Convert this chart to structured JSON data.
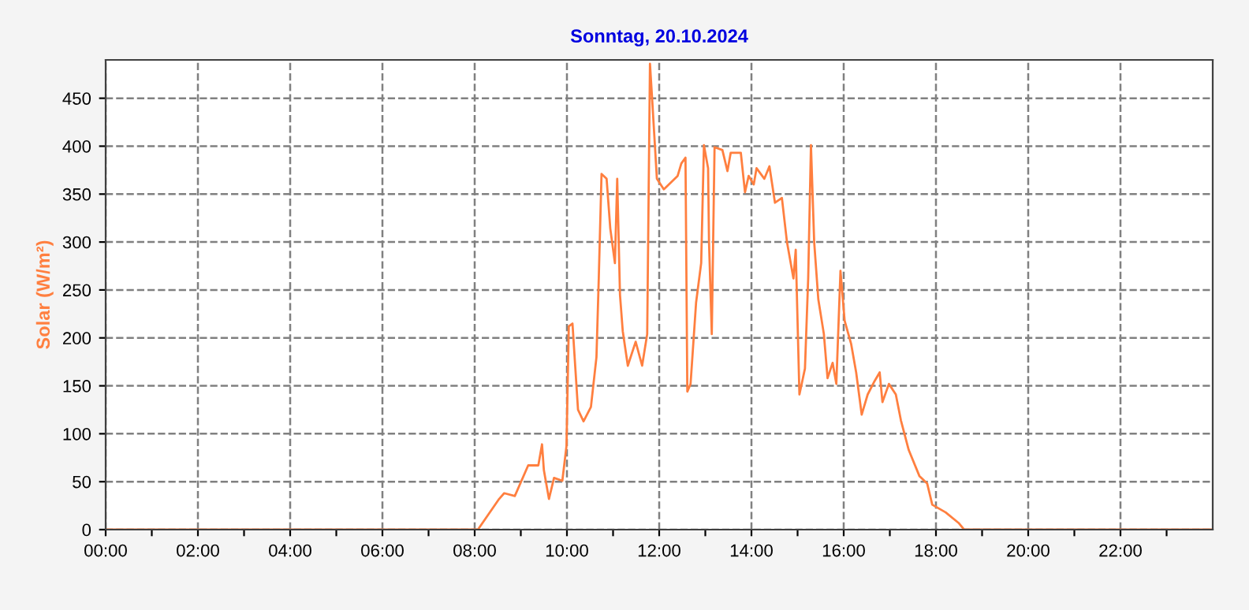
{
  "chart_data": {
    "type": "line",
    "title": "Sonntag, 20.10.2024",
    "ylabel": "Solar (W/m²)",
    "x": [
      0,
      8.07,
      8.53,
      8.64,
      8.87,
      9.16,
      9.38,
      9.46,
      9.5,
      9.61,
      9.72,
      9.9,
      9.99,
      10.04,
      10.12,
      10.24,
      10.36,
      10.52,
      10.64,
      10.69,
      10.75,
      10.86,
      10.94,
      11.04,
      11.09,
      11.15,
      11.21,
      11.32,
      11.49,
      11.63,
      11.74,
      11.8,
      11.85,
      11.95,
      12.1,
      12.4,
      12.48,
      12.57,
      12.61,
      12.68,
      12.8,
      12.91,
      12.97,
      13.06,
      13.08,
      13.14,
      13.2,
      13.37,
      13.48,
      13.55,
      13.77,
      13.86,
      13.94,
      14.05,
      14.11,
      14.28,
      14.39,
      14.51,
      14.66,
      14.77,
      14.91,
      14.96,
      15.04,
      15.16,
      15.23,
      15.29,
      15.36,
      15.45,
      15.57,
      15.65,
      15.76,
      15.84,
      15.93,
      16.02,
      16.16,
      16.27,
      16.39,
      16.52,
      16.67,
      16.78,
      16.84,
      16.98,
      17.13,
      17.24,
      17.41,
      17.64,
      17.81,
      17.92,
      18.21,
      18.49,
      18.61,
      24
    ],
    "series": [
      {
        "color": "#ff7f3f",
        "values": [
          0,
          0,
          32,
          38,
          35,
          67,
          67,
          89,
          62,
          32,
          54,
          51,
          87,
          212,
          215,
          125,
          113,
          128,
          180,
          262,
          371,
          366,
          314,
          278,
          366,
          245,
          207,
          171,
          196,
          171,
          204,
          486,
          447,
          366,
          355,
          369,
          382,
          388,
          144,
          152,
          237,
          278,
          401,
          377,
          300,
          204,
          399,
          396,
          374,
          393,
          393,
          352,
          369,
          360,
          377,
          366,
          379,
          341,
          346,
          300,
          262,
          292,
          141,
          168,
          262,
          401,
          300,
          240,
          204,
          158,
          174,
          152,
          270,
          218,
          194,
          164,
          120,
          141,
          155,
          164,
          133,
          152,
          141,
          114,
          83,
          56,
          48,
          26,
          18,
          7,
          0,
          0
        ]
      }
    ],
    "xlim": [
      0,
      24
    ],
    "ylim": [
      0,
      490
    ],
    "xticks": [
      {
        "value": 0,
        "label": "00:00"
      },
      {
        "value": 1,
        "label": null
      },
      {
        "value": 2,
        "label": "02:00"
      },
      {
        "value": 3,
        "label": null
      },
      {
        "value": 4,
        "label": "04:00"
      },
      {
        "value": 5,
        "label": null
      },
      {
        "value": 6,
        "label": "06:00"
      },
      {
        "value": 7,
        "label": null
      },
      {
        "value": 8,
        "label": "08:00"
      },
      {
        "value": 9,
        "label": null
      },
      {
        "value": 10,
        "label": "10:00"
      },
      {
        "value": 11,
        "label": null
      },
      {
        "value": 12,
        "label": "12:00"
      },
      {
        "value": 13,
        "label": null
      },
      {
        "value": 14,
        "label": "14:00"
      },
      {
        "value": 15,
        "label": null
      },
      {
        "value": 16,
        "label": "16:00"
      },
      {
        "value": 17,
        "label": null
      },
      {
        "value": 18,
        "label": "18:00"
      },
      {
        "value": 19,
        "label": null
      },
      {
        "value": 20,
        "label": "20:00"
      },
      {
        "value": 21,
        "label": null
      },
      {
        "value": 22,
        "label": "22:00"
      },
      {
        "value": 23,
        "label": null
      }
    ],
    "yticks": [
      0,
      50,
      100,
      150,
      200,
      250,
      300,
      350,
      400,
      450
    ],
    "grid": true,
    "marker": "none",
    "line_style": "solid"
  }
}
